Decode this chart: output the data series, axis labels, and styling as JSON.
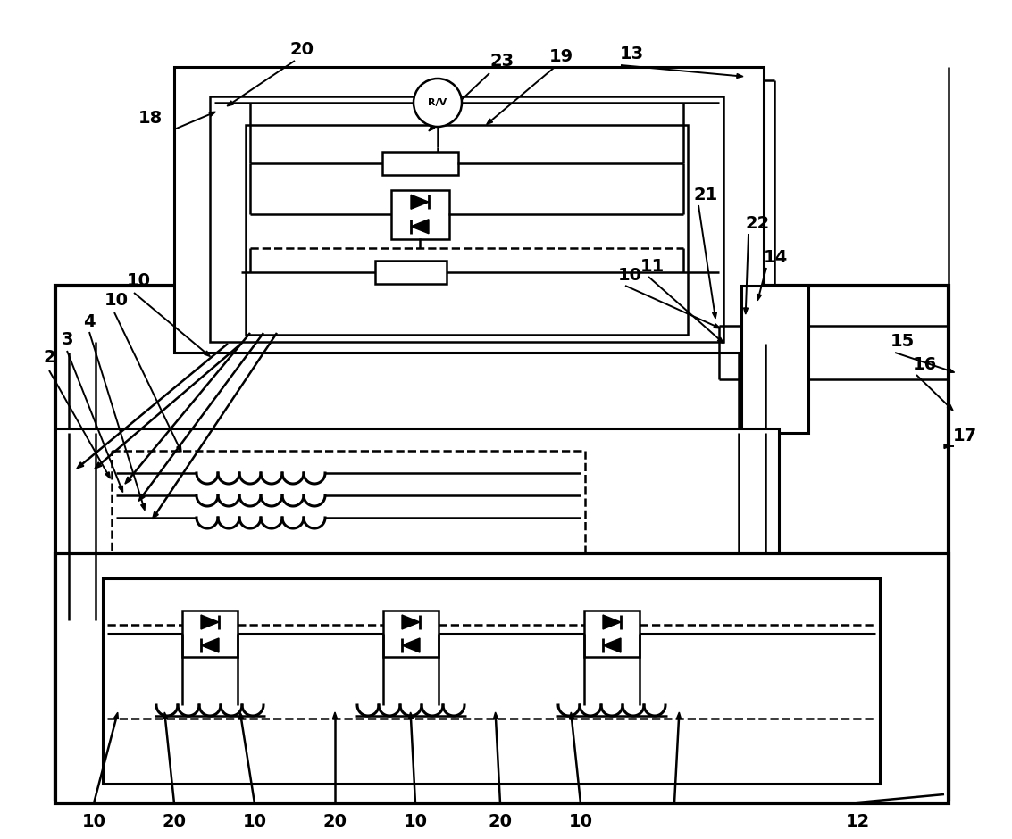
{
  "bg_color": "#ffffff",
  "lw_thick": 3.0,
  "lw_med": 2.2,
  "lw_thin": 1.8,
  "lw_vthin": 1.4
}
